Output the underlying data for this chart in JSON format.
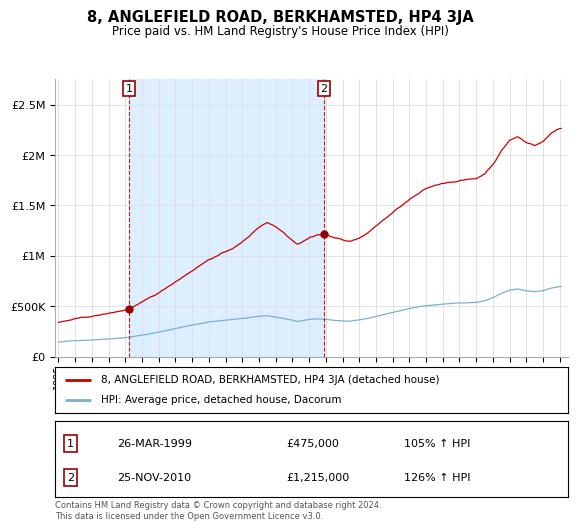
{
  "title": "8, ANGLEFIELD ROAD, BERKHAMSTED, HP4 3JA",
  "subtitle": "Price paid vs. HM Land Registry's House Price Index (HPI)",
  "ylim": [
    0,
    2750000
  ],
  "yticks": [
    0,
    500000,
    1000000,
    1500000,
    2000000,
    2500000
  ],
  "ytick_labels": [
    "£0",
    "£500K",
    "£1M",
    "£1.5M",
    "£2M",
    "£2.5M"
  ],
  "legend_line1": "8, ANGLEFIELD ROAD, BERKHAMSTED, HP4 3JA (detached house)",
  "legend_line2": "HPI: Average price, detached house, Dacorum",
  "sale1_label": "1",
  "sale1_date": "26-MAR-1999",
  "sale1_price": "£475,000",
  "sale1_hpi": "105% ↑ HPI",
  "sale2_label": "2",
  "sale2_date": "25-NOV-2010",
  "sale2_price": "£1,215,000",
  "sale2_hpi": "126% ↑ HPI",
  "footer": "Contains HM Land Registry data © Crown copyright and database right 2024.\nThis data is licensed under the Open Government Licence v3.0.",
  "line_color_red": "#cc0000",
  "line_color_blue": "#7ab0d4",
  "shade_color": "#ddeeff",
  "marker_color": "#990000",
  "sale1_x": 1999.23,
  "sale1_y": 475000,
  "sale2_x": 2010.9,
  "sale2_y": 1215000,
  "xtick_years": [
    1995,
    1996,
    1997,
    1998,
    1999,
    2000,
    2001,
    2002,
    2003,
    2004,
    2005,
    2006,
    2007,
    2008,
    2009,
    2010,
    2011,
    2012,
    2013,
    2014,
    2015,
    2016,
    2017,
    2018,
    2019,
    2020,
    2021,
    2022,
    2023,
    2024,
    2025
  ],
  "xlim_left": 1994.8,
  "xlim_right": 2025.5,
  "grid_color": "#dddddd",
  "background_color": "#ffffff"
}
